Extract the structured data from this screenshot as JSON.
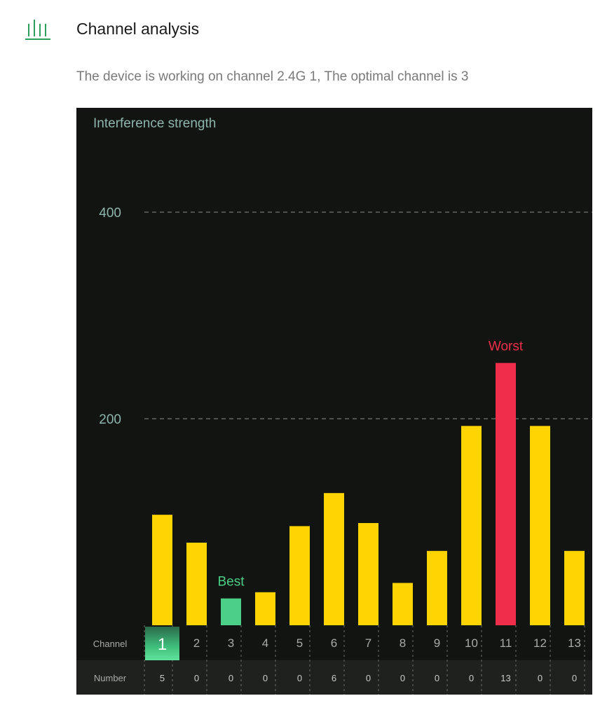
{
  "header": {
    "title": "Channel analysis",
    "icon": "bar-chart-icon",
    "accent_color": "#2e9e5b"
  },
  "status_text": "The device is working on channel 2.4G 1, The optimal channel is 3",
  "chart_data": {
    "type": "bar",
    "title": "Interference strength",
    "categories": [
      "1",
      "2",
      "3",
      "4",
      "5",
      "6",
      "7",
      "8",
      "9",
      "10",
      "11",
      "12",
      "13"
    ],
    "values": [
      107,
      80,
      26,
      32,
      96,
      128,
      99,
      41,
      72,
      193,
      254,
      193,
      72
    ],
    "ylim": [
      0,
      400
    ],
    "yticks": [
      200,
      400
    ],
    "grid": true,
    "current_channel": "1",
    "best_channel": "3",
    "worst_channel": "11",
    "best_label": "Best",
    "worst_label": "Worst",
    "row_labels": {
      "channel": "Channel",
      "number": "Number"
    },
    "numbers": [
      "5",
      "0",
      "0",
      "0",
      "0",
      "6",
      "0",
      "0",
      "0",
      "0",
      "13",
      "0",
      "0"
    ],
    "colors": {
      "normal": "#ffd400",
      "best": "#4ccf86",
      "worst": "#ee2e4b",
      "axis_text": "#8fb5ad",
      "background": "#111411",
      "number_row": "#1f211f"
    }
  }
}
